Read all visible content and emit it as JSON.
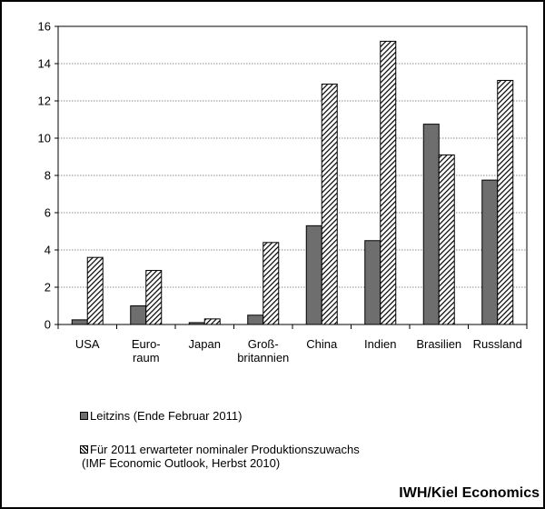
{
  "chart_data": {
    "type": "bar",
    "categories": [
      [
        "USA"
      ],
      [
        "Euro-",
        "raum"
      ],
      [
        "Japan"
      ],
      [
        "Groß-",
        "britannien"
      ],
      [
        "China"
      ],
      [
        "Indien"
      ],
      [
        "Brasilien"
      ],
      [
        "Russland"
      ]
    ],
    "series": [
      {
        "name": "Leitzins (Ende Februar 2011)",
        "values": [
          0.25,
          1.0,
          0.1,
          0.5,
          5.3,
          4.5,
          10.75,
          7.75
        ],
        "color": "#6e6e6e",
        "fill": "solid"
      },
      {
        "name": "Für 2011 erwarteter nominaler Produktionszuwachs",
        "name_line2": "(IMF Economic Outlook, Herbst 2010)",
        "values": [
          3.6,
          2.9,
          0.3,
          4.4,
          12.9,
          15.2,
          9.1,
          13.1
        ],
        "color": "#ffffff",
        "fill": "diagonal-hatch"
      }
    ],
    "ylim": [
      0,
      16
    ],
    "yticks": [
      0,
      2,
      4,
      6,
      8,
      10,
      12,
      14,
      16
    ],
    "grid": true,
    "legend_position": "bottom-left",
    "title": "",
    "xlabel": "",
    "ylabel": ""
  },
  "source_label": "IWH/Kiel Economics"
}
